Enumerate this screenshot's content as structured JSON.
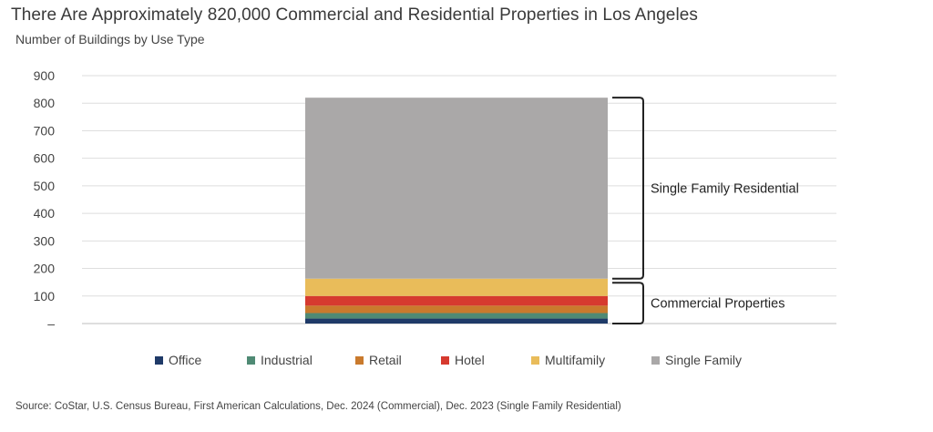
{
  "title": "There Are Approximately 820,000 Commercial and Residential Properties in Los Angeles",
  "subtitle": "Number of Buildings by Use Type",
  "source": "Source: CoStar, U.S. Census Bureau, First American Calculations, Dec. 2024 (Commercial), Dec. 2023 (Single Family Residential)",
  "chart_data": {
    "type": "bar",
    "stacked": true,
    "ylim": [
      0,
      900
    ],
    "yticks": [
      0,
      100,
      200,
      300,
      400,
      500,
      600,
      700,
      800,
      900
    ],
    "ytick_labels": [
      "–",
      "100",
      "200",
      "300",
      "400",
      "500",
      "600",
      "700",
      "800",
      "900"
    ],
    "grid": true,
    "legend_position": "bottom",
    "categories": [
      ""
    ],
    "series": [
      {
        "name": "Office",
        "color": "#1f3a68",
        "values": [
          18
        ]
      },
      {
        "name": "Industrial",
        "color": "#4f8a74",
        "values": [
          20
        ]
      },
      {
        "name": "Retail",
        "color": "#c97a2d",
        "values": [
          27
        ]
      },
      {
        "name": "Hotel",
        "color": "#d63a2f",
        "values": [
          35
        ]
      },
      {
        "name": "Multifamily",
        "color": "#e9bc5a",
        "values": [
          63
        ]
      },
      {
        "name": "Single Family",
        "color": "#aaa8a8",
        "values": [
          657
        ]
      }
    ],
    "annotations": [
      {
        "label": "Single Family Residential",
        "range": [
          163,
          820
        ]
      },
      {
        "label": "Commercial Properties",
        "range": [
          0,
          148
        ]
      }
    ]
  }
}
